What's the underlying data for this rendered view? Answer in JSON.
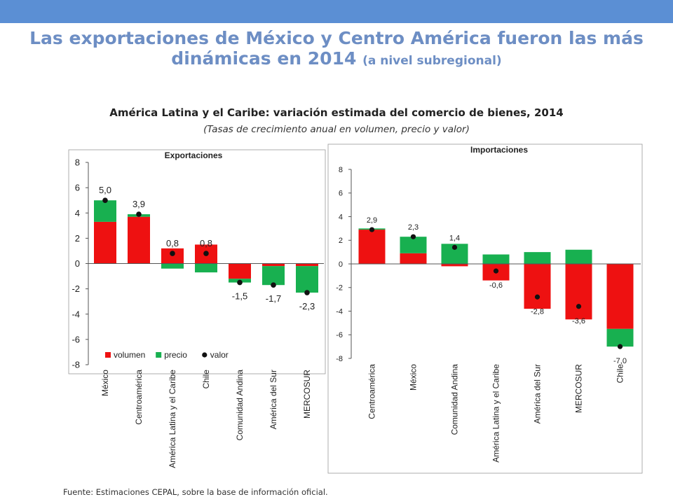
{
  "header": {
    "title_line1": "Las exportaciones de México y Centro América fueron las más",
    "title_line2": "dinámicas en 2014",
    "title_note": "(a nivel subregional)"
  },
  "figure": {
    "title": "América Latina y el Caribe: variación estimada del comercio de bienes, 2014",
    "subtitle": "(Tasas de crecimiento anual en volumen, precio y valor)",
    "source": "Fuente: Estimaciones CEPAL, sobre la base de información oficial."
  },
  "colors": {
    "volumen": "#ee1111",
    "precio": "#18b050",
    "valor": "#111111",
    "header_bar": "#5b8fd4"
  },
  "chart_data": [
    {
      "type": "bar",
      "stacked": true,
      "title": "Exportaciones",
      "categories": [
        "México",
        "Centroamérica",
        "América Latina y el Caribe",
        "Chile",
        "Comunidad Andina",
        "América del Sur",
        "MERCOSUR"
      ],
      "series": [
        {
          "name": "volumen",
          "kind": "bar",
          "values": [
            3.3,
            3.7,
            1.2,
            1.5,
            -1.2,
            -0.2,
            -0.2
          ]
        },
        {
          "name": "precio",
          "kind": "bar",
          "values": [
            1.7,
            0.2,
            -0.4,
            -0.7,
            -0.3,
            -1.5,
            -2.1
          ]
        },
        {
          "name": "valor",
          "kind": "dot",
          "values": [
            5.0,
            3.9,
            0.8,
            0.8,
            -1.5,
            -1.7,
            -2.3
          ]
        }
      ],
      "data_labels": [
        "5,0",
        "3,9",
        "0,8",
        "0,8",
        "-1,5",
        "-1,7",
        "-2,3"
      ],
      "ylim": [
        -8,
        8
      ],
      "yticks": [
        8,
        6,
        4,
        2,
        0,
        -2,
        -4,
        -6,
        -8
      ],
      "legend": [
        "volumen",
        "precio",
        "valor"
      ],
      "legend_position": "bottom"
    },
    {
      "type": "bar",
      "stacked": true,
      "title": "Importaciones",
      "categories": [
        "Centroamérica",
        "México",
        "Comunidad Andina",
        "América Latina y el Caribe",
        "América del Sur",
        "MERCOSUR",
        "Chile"
      ],
      "series": [
        {
          "name": "volumen",
          "kind": "bar",
          "values": [
            2.9,
            0.9,
            -0.2,
            -1.4,
            -3.8,
            -4.7,
            -5.5
          ]
        },
        {
          "name": "precio",
          "kind": "bar",
          "values": [
            0.1,
            1.4,
            1.7,
            0.8,
            1.0,
            1.2,
            -1.5
          ]
        },
        {
          "name": "valor",
          "kind": "dot",
          "values": [
            2.9,
            2.3,
            1.4,
            -0.6,
            -2.8,
            -3.6,
            -7.0
          ]
        }
      ],
      "data_labels": [
        "2,9",
        "2,3",
        "1,4",
        "-0,6",
        "-2,8",
        "-3,6",
        "-7,0"
      ],
      "ylim": [
        -8,
        8
      ],
      "yticks": [
        8,
        6,
        4,
        2,
        0,
        -2,
        -4,
        -6,
        -8
      ]
    }
  ]
}
